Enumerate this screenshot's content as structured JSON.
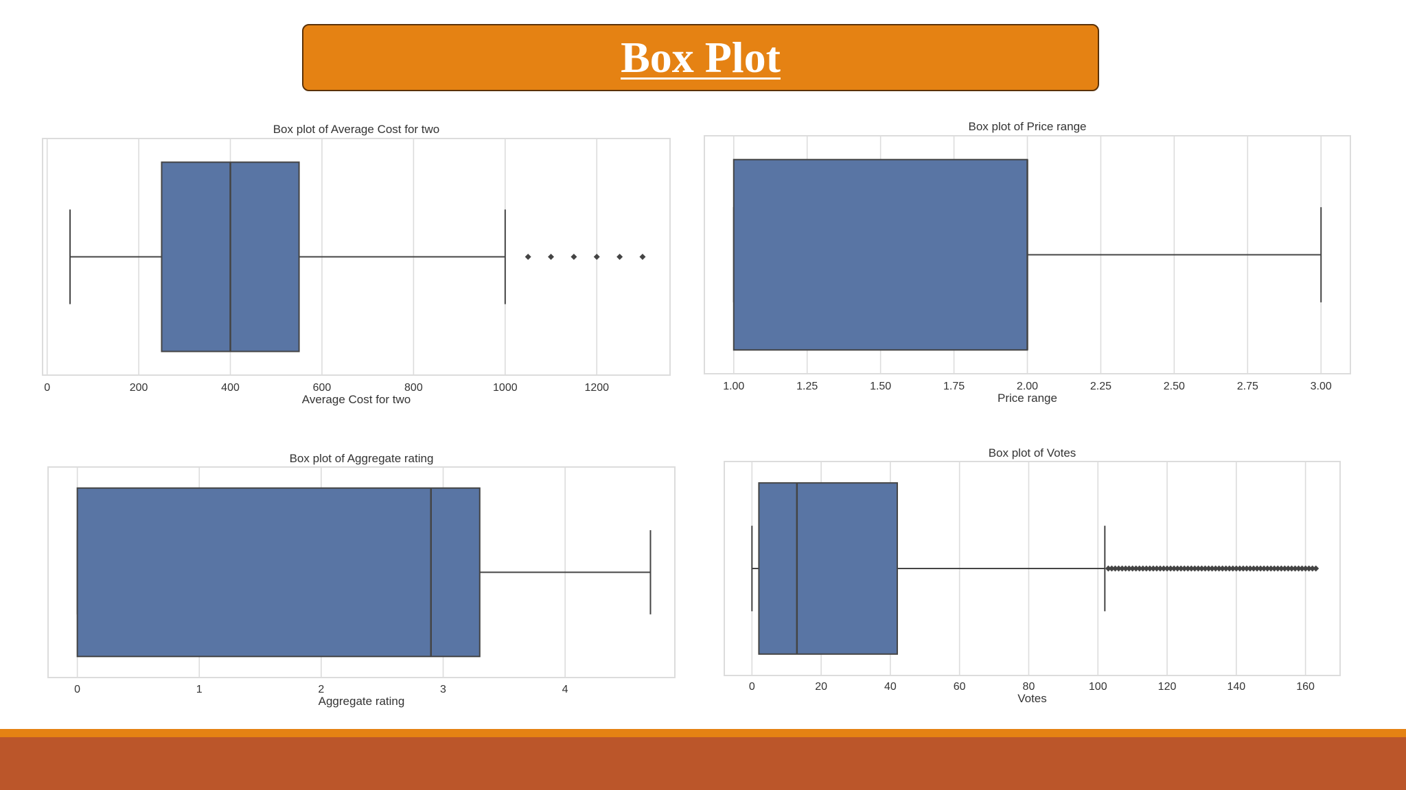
{
  "slide": {
    "title": "Box Plot",
    "colors": {
      "banner": "#e58213",
      "footer": "#bb562a",
      "box": "#5975a4",
      "line": "#444444",
      "grid": "#dcdcdc"
    }
  },
  "chart_data": [
    {
      "type": "box",
      "title": "Box plot of Average Cost for two",
      "xlabel": "Average Cost for two",
      "xlim": [
        -10,
        1360
      ],
      "ticks": [
        0,
        200,
        400,
        600,
        800,
        1000,
        1200
      ],
      "tick_labels": [
        "0",
        "200",
        "400",
        "600",
        "800",
        "1000",
        "1200"
      ],
      "whisker_low": 50,
      "q1": 250,
      "median": 400,
      "q3": 550,
      "whisker_high": 1000,
      "outliers": [
        1050,
        1100,
        1150,
        1200,
        1250,
        1300
      ],
      "grid": true
    },
    {
      "type": "box",
      "title": "Box plot of Price range",
      "xlabel": "Price range",
      "xlim": [
        0.9,
        3.1
      ],
      "ticks": [
        1.0,
        1.25,
        1.5,
        1.75,
        2.0,
        2.25,
        2.5,
        2.75,
        3.0
      ],
      "tick_labels": [
        "1.00",
        "1.25",
        "1.50",
        "1.75",
        "2.00",
        "2.25",
        "2.50",
        "2.75",
        "3.00"
      ],
      "whisker_low": 1.0,
      "q1": 1.0,
      "median": 2.0,
      "q3": 2.0,
      "whisker_high": 3.0,
      "outliers": [],
      "grid": true
    },
    {
      "type": "box",
      "title": "Box plot of Aggregate rating",
      "xlabel": "Aggregate rating",
      "xlim": [
        -0.24,
        4.9
      ],
      "ticks": [
        0,
        1,
        2,
        3,
        4
      ],
      "tick_labels": [
        "0",
        "1",
        "2",
        "3",
        "4"
      ],
      "whisker_low": 0,
      "q1": 0,
      "median": 2.9,
      "q3": 3.3,
      "whisker_high": 4.7,
      "outliers": [],
      "grid": true
    },
    {
      "type": "box",
      "title": "Box plot of Votes",
      "xlabel": "Votes",
      "xlim": [
        -8,
        170
      ],
      "ticks": [
        0,
        20,
        40,
        60,
        80,
        100,
        120,
        140,
        160
      ],
      "tick_labels": [
        "0",
        "20",
        "40",
        "60",
        "80",
        "100",
        "120",
        "140",
        "160"
      ],
      "whisker_low": 0,
      "q1": 2,
      "median": 13,
      "q3": 42,
      "whisker_high": 102,
      "outliers": [
        103,
        104,
        105,
        106,
        107,
        108,
        109,
        110,
        111,
        112,
        113,
        114,
        115,
        116,
        117,
        118,
        119,
        120,
        121,
        122,
        123,
        124,
        125,
        126,
        127,
        128,
        129,
        130,
        131,
        132,
        133,
        134,
        135,
        136,
        137,
        138,
        139,
        140,
        141,
        142,
        143,
        144,
        145,
        146,
        147,
        148,
        149,
        150,
        151,
        152,
        153,
        154,
        155,
        156,
        157,
        158,
        159,
        160,
        161,
        162,
        163
      ],
      "grid": true
    }
  ]
}
